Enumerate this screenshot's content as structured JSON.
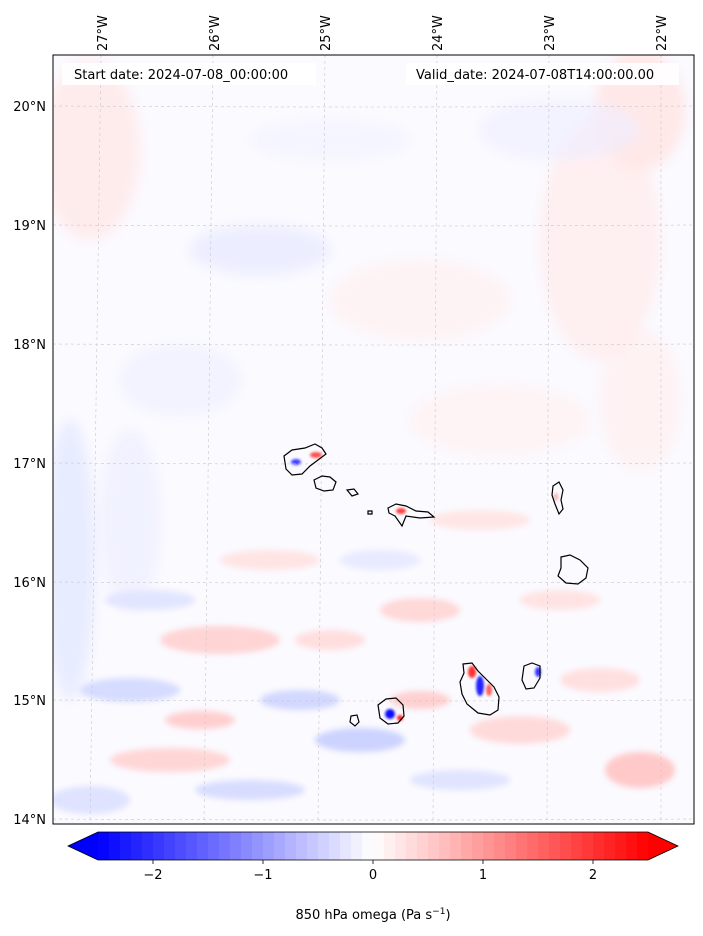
{
  "map": {
    "start_label": "Start date: 2024-07-08_00:00:00",
    "valid_label": "Valid_date: 2024-07-08T14:00:00.00",
    "lon_ticks": [
      "27°W",
      "26°W",
      "25°W",
      "24°W",
      "23°W",
      "22°W"
    ],
    "lat_ticks": [
      "20°N",
      "19°N",
      "18°N",
      "17°N",
      "16°N",
      "15°N",
      "14°N"
    ],
    "extent": {
      "lon_min": -27.4,
      "lon_max": -21.7,
      "lat_min": 13.95,
      "lat_max": 20.4
    },
    "grid": true,
    "field_colormap": "bwr",
    "coastline_color": "#000000"
  },
  "colorbar": {
    "label_main": "850 hPa omega (Pa s",
    "label_sup": "−1",
    "label_end": ")",
    "ticks": [
      "−2",
      "−1",
      "0",
      "1",
      "2"
    ],
    "tick_values": [
      -2,
      -1,
      0,
      1,
      2
    ],
    "range": [
      -2.5,
      2.5
    ],
    "extend": "both",
    "min_color": "#0000ff",
    "max_color": "#ff0000"
  }
}
